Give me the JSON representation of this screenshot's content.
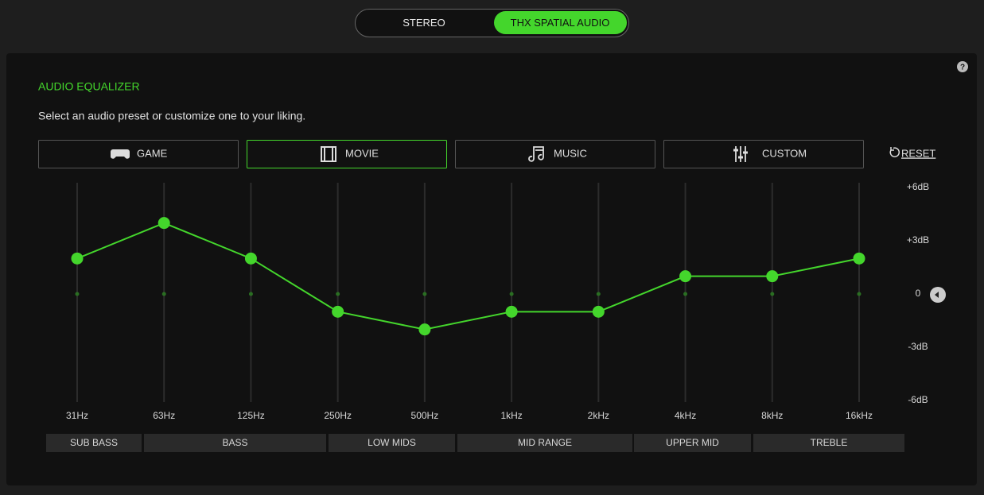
{
  "tabs": {
    "options": [
      "STEREO",
      "THX SPATIAL AUDIO"
    ],
    "active": 1
  },
  "panel": {
    "help": "?",
    "title": "AUDIO EQUALIZER",
    "subtitle": "Select an audio preset or customize one to your liking.",
    "presets": [
      "GAME",
      "MOVIE",
      "MUSIC",
      "CUSTOM"
    ],
    "selected_preset": 1,
    "reset": "RESET"
  },
  "chart_data": {
    "type": "line",
    "categories": [
      "31Hz",
      "63Hz",
      "125Hz",
      "250Hz",
      "500Hz",
      "1kHz",
      "2kHz",
      "4kHz",
      "8kHz",
      "16kHz"
    ],
    "values": [
      2,
      4,
      2,
      -1,
      -2,
      -1,
      -1,
      1,
      1,
      2
    ],
    "color": "#44d62c",
    "ylim": [
      -6,
      6
    ],
    "yticks": [
      {
        "value": 6,
        "label": "+6dB"
      },
      {
        "value": 3,
        "label": "+3dB"
      },
      0,
      {
        "value": -3,
        "label": "-3dB"
      },
      {
        "value": -6,
        "label": "-6dB"
      }
    ],
    "bands": [
      "SUB BASS",
      "BASS",
      "LOW MIDS",
      "MID RANGE",
      "UPPER MID",
      "TREBLE"
    ]
  }
}
